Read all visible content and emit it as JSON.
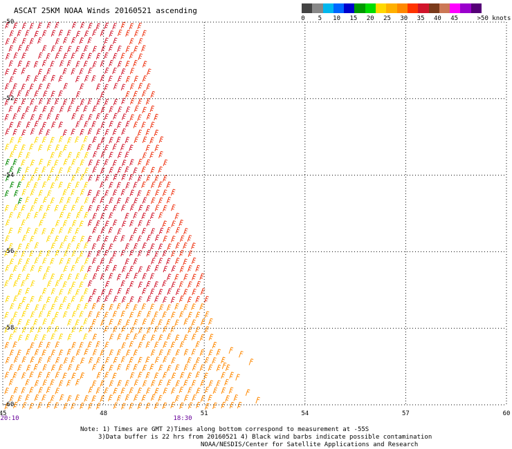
{
  "title": "ASCAT 25KM NOAA Winds 20160521 ascending",
  "colorbar": {
    "colors": [
      "#444444",
      "#888888",
      "#00b7ee",
      "#0066ff",
      "#0000cc",
      "#009900",
      "#00dd00",
      "#ffd800",
      "#ffb000",
      "#ff8800",
      "#ff3300",
      "#d0142a",
      "#7a3a1a",
      "#cc7755",
      "#ff00ff",
      "#9900cc",
      "#550077"
    ],
    "ticks": [
      "0",
      "5",
      "10",
      "15",
      "20",
      "25",
      "30",
      "35",
      "40",
      "45",
      ">50 knots"
    ]
  },
  "axes": {
    "lat_labels": [
      "-50",
      "-52",
      "-54",
      "-56",
      "-58",
      "-60"
    ],
    "lon_labels": [
      "45",
      "48",
      "51",
      "54",
      "57",
      "60"
    ],
    "time_labels": [
      "20:10",
      "18:30"
    ]
  },
  "notes": [
    "Note: 1) Times are GMT 2)Times along bottom correspond to measurement at -55S",
    "3)Data buffer is 22 hrs from 20160521 4) Black wind barbs indicate possible contamination",
    "NOAA/NESDIS/Center for Satellite Applications and Research"
  ],
  "chart_data": {
    "type": "scatter",
    "title": "ASCAT 25KM NOAA Winds 20160521 ascending",
    "x_axis": {
      "label": "",
      "range": [
        45,
        60
      ],
      "ticks": [
        45,
        48,
        51,
        54,
        57,
        60
      ]
    },
    "y_axis": {
      "label": "",
      "range": [
        -60,
        -50
      ],
      "ticks": [
        -50,
        -52,
        -54,
        -56,
        -58,
        -60
      ]
    },
    "grid": true,
    "legend": "colorbar top-right, wind speed in knots 0 to >50",
    "swath": {
      "description": "wind barbs over a diagonal satellite swath",
      "east_edge_lon": [
        [
          -50,
          49.2
        ],
        [
          -52,
          49.5
        ],
        [
          -54,
          49.9
        ],
        [
          -56,
          50.8
        ],
        [
          -58,
          51.3
        ],
        [
          -60,
          52.2
        ]
      ],
      "speed_zones": [
        {
          "region": "swath interior",
          "speed_knots": "35-40",
          "color": "#d0142a"
        },
        {
          "region": "swath east edge",
          "speed_knots": "30-35",
          "color": "#ee3311"
        },
        {
          "region": "swath west/south",
          "speed_knots": "25-30",
          "color": "#ff8800"
        },
        {
          "region": "near 45E -53 to -57",
          "speed_knots": "20-25",
          "color": "#ffd800"
        },
        {
          "region": "near 45E -53.5 to -54.5",
          "speed_knots": "15-20",
          "color": "#008800"
        }
      ]
    }
  }
}
